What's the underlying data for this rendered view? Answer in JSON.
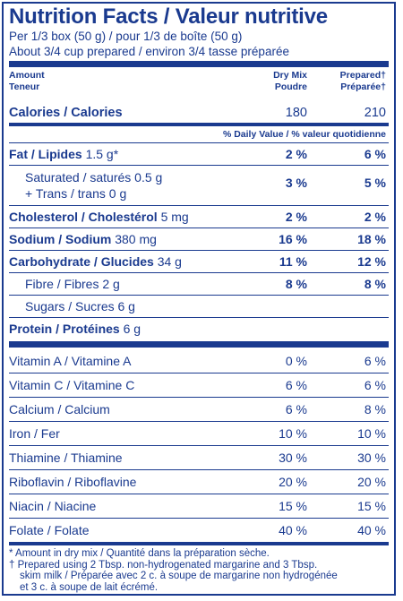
{
  "title": "Nutrition Facts / Valeur nutritive",
  "serving_line1": "Per 1/3 box (50 g) / pour 1/3 de boîte (50 g)",
  "serving_line2": "About 3/4 cup prepared / environ 3/4 tasse préparée",
  "header": {
    "amount": "Amount",
    "teneur": "Teneur",
    "col1_line1": "Dry Mix",
    "col1_line2": "Poudre",
    "col2_line1": "Prepared†",
    "col2_line2": "Préparée†"
  },
  "calories": {
    "label": "Calories / Calories",
    "dry": "180",
    "prepared": "210"
  },
  "dv_header": "% Daily Value / % valeur quotidienne",
  "nutrients": {
    "fat": {
      "label": "Fat / Lipides",
      "amount": "1.5 g*",
      "dry": "2 %",
      "prepared": "6 %"
    },
    "saturated": {
      "line1": "Saturated / saturés 0.5 g",
      "line2": "+ Trans / trans 0 g",
      "dry": "3 %",
      "prepared": "5 %"
    },
    "cholesterol": {
      "label": "Cholesterol / Cholestérol",
      "amount": "5 mg",
      "dry": "2 %",
      "prepared": "2 %"
    },
    "sodium": {
      "label": "Sodium / Sodium",
      "amount": "380 mg",
      "dry": "16 %",
      "prepared": "18 %"
    },
    "carbohydrate": {
      "label": "Carbohydrate / Glucides",
      "amount": "34 g",
      "dry": "11 %",
      "prepared": "12 %"
    },
    "fibre": {
      "label": "Fibre / Fibres 2 g",
      "dry": "8 %",
      "prepared": "8 %"
    },
    "sugars": {
      "label": "Sugars / Sucres 6 g"
    },
    "protein": {
      "label": "Protein / Protéines",
      "amount": "6 g"
    }
  },
  "vitamins": [
    {
      "label": "Vitamin A / Vitamine A",
      "dry": "0 %",
      "prepared": "6 %"
    },
    {
      "label": "Vitamin C / Vitamine C",
      "dry": "6 %",
      "prepared": "6 %"
    },
    {
      "label": "Calcium / Calcium",
      "dry": "6 %",
      "prepared": "8 %"
    },
    {
      "label": "Iron / Fer",
      "dry": "10 %",
      "prepared": "10 %"
    },
    {
      "label": "Thiamine / Thiamine",
      "dry": "30 %",
      "prepared": "30 %"
    },
    {
      "label": "Riboflavin / Riboflavine",
      "dry": "20 %",
      "prepared": "20 %"
    },
    {
      "label": "Niacin / Niacine",
      "dry": "15 %",
      "prepared": "15 %"
    },
    {
      "label": "Folate / Folate",
      "dry": "40 %",
      "prepared": "40 %"
    }
  ],
  "footnotes": {
    "line1": "* Amount in dry mix / Quantité dans la préparation sèche.",
    "line2": "† Prepared using 2 Tbsp. non-hydrogenated margarine and 3 Tbsp.",
    "line3": "skim milk / Préparée avec 2 c. à soupe de margarine non hydrogénée",
    "line4": "et 3 c. à soupe de lait écrémé."
  },
  "colors": {
    "text": "#1a3a8f",
    "background": "#ffffff"
  }
}
